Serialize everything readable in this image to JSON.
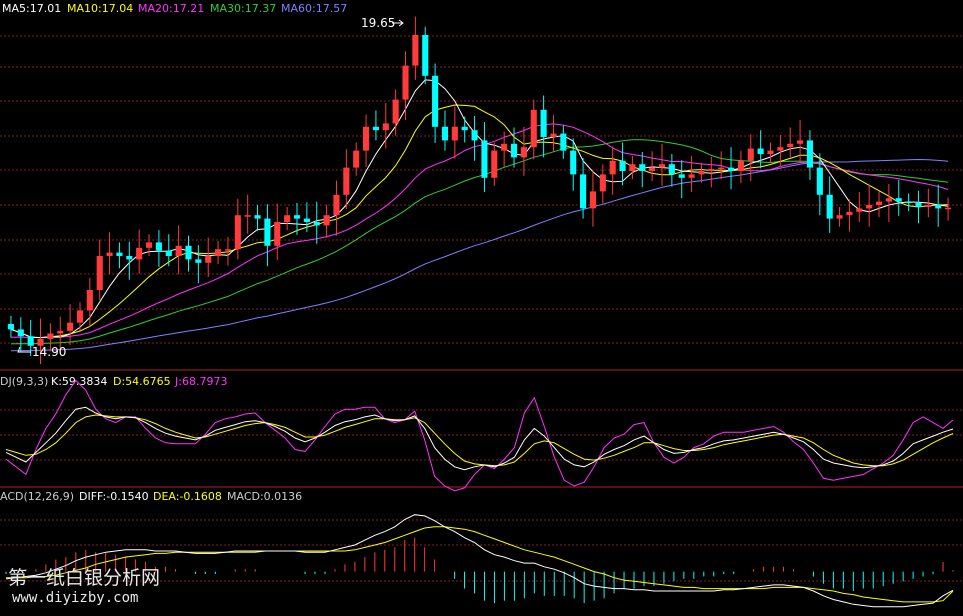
{
  "main": {
    "ma_labels": [
      {
        "text": "MA5:17.01",
        "color": "#ffffff"
      },
      {
        "text": "MA10:17.04",
        "color": "#ffff00"
      },
      {
        "text": "MA20:17.21",
        "color": "#ff33ff"
      },
      {
        "text": "MA30:17.37",
        "color": "#33cc33"
      },
      {
        "text": "MA60:17.57",
        "color": "#8080ff"
      }
    ],
    "high_label": "19.65",
    "low_label": "14.90"
  },
  "kdj": {
    "header": "DJ(9,3,3)",
    "k": "K:59.3834",
    "d": "D:54.6765",
    "j": "J:68.7973"
  },
  "macd": {
    "header": "ACD(12,26,9)",
    "diff": "DIFF:-0.1540",
    "dea": "DEA:-0.1608",
    "macd": "MACD:0.0136"
  },
  "watermark": {
    "line1": "第一纸白银分析网",
    "line2": "www.diyizby.com"
  },
  "colors": {
    "up": "#ff3b3b",
    "down": "#00ffff",
    "grid": "#8a1c1c",
    "border": "#b02020",
    "ma5": "#ffffff",
    "ma10": "#ffff00",
    "ma20": "#ff33ff",
    "ma30": "#33cc33",
    "ma60": "#8080ff"
  },
  "chart_data": [
    {
      "type": "candlestick",
      "title": "",
      "ylim": [
        14.8,
        19.8
      ],
      "highest": 19.65,
      "lowest": 14.9,
      "closes": [
        15.22,
        15.12,
        14.98,
        15.08,
        15.16,
        15.2,
        15.32,
        15.5,
        15.8,
        16.3,
        16.35,
        16.3,
        16.25,
        16.42,
        16.5,
        16.38,
        16.3,
        16.45,
        16.25,
        16.2,
        16.3,
        16.4,
        16.4,
        16.9,
        16.9,
        16.85,
        16.45,
        16.8,
        16.9,
        16.85,
        16.8,
        16.75,
        16.9,
        17.2,
        17.6,
        17.85,
        18.2,
        18.15,
        18.25,
        18.6,
        19.1,
        19.55,
        18.95,
        18.2,
        18.0,
        18.2,
        18.15,
        18.0,
        17.45,
        17.85,
        17.95,
        17.75,
        17.9,
        18.45,
        18.05,
        18.1,
        17.85,
        17.5,
        17.0,
        17.25,
        17.5,
        17.7,
        17.55,
        17.65,
        17.55,
        17.6,
        17.65,
        17.5,
        17.45,
        17.5,
        17.55,
        17.58,
        17.6,
        17.55,
        17.7,
        17.88,
        17.8,
        17.85,
        17.9,
        17.95,
        18.0,
        17.6,
        17.2,
        16.85,
        16.9,
        16.95,
        17.0,
        17.05,
        17.1,
        17.15,
        17.1,
        17.08,
        17.02,
        17.05,
        17.0,
        17.01
      ],
      "opens": [
        15.3,
        15.22,
        15.12,
        14.98,
        15.08,
        15.16,
        15.2,
        15.32,
        15.5,
        15.8,
        16.3,
        16.35,
        16.3,
        16.25,
        16.42,
        16.5,
        16.38,
        16.3,
        16.45,
        16.25,
        16.2,
        16.3,
        16.4,
        16.4,
        16.9,
        16.9,
        16.85,
        16.45,
        16.8,
        16.9,
        16.85,
        16.8,
        16.75,
        16.9,
        17.2,
        17.6,
        17.85,
        18.2,
        18.15,
        18.25,
        18.6,
        19.1,
        19.55,
        18.95,
        18.2,
        18.0,
        18.2,
        18.15,
        18.0,
        17.45,
        17.85,
        17.95,
        17.75,
        17.9,
        18.45,
        18.05,
        18.1,
        17.85,
        17.5,
        17.0,
        17.25,
        17.5,
        17.7,
        17.55,
        17.65,
        17.55,
        17.6,
        17.65,
        17.5,
        17.45,
        17.5,
        17.55,
        17.58,
        17.6,
        17.55,
        17.7,
        17.88,
        17.8,
        17.85,
        17.9,
        17.95,
        18.0,
        17.6,
        17.2,
        16.85,
        16.9,
        16.95,
        17.0,
        17.05,
        17.1,
        17.15,
        17.1,
        17.08,
        17.02,
        17.05,
        17.0
      ]
    },
    {
      "type": "line",
      "title": "",
      "ylim": [
        0,
        100
      ],
      "series": [
        {
          "name": "K",
          "values": [
            35,
            30,
            25,
            35,
            45,
            55,
            68,
            80,
            82,
            76,
            72,
            70,
            72,
            71,
            66,
            60,
            55,
            52,
            50,
            48,
            52,
            58,
            61,
            64,
            67,
            68,
            66,
            62,
            57,
            50,
            46,
            50,
            56,
            63,
            67,
            69,
            72,
            74,
            70,
            68,
            69,
            73,
            60,
            40,
            28,
            20,
            17,
            20,
            22,
            20,
            24,
            30,
            48,
            60,
            52,
            40,
            28,
            22,
            20,
            25,
            33,
            38,
            42,
            48,
            52,
            45,
            38,
            34,
            35,
            38,
            40,
            44,
            47,
            48,
            50,
            52,
            54,
            56,
            54,
            50,
            46,
            38,
            28,
            24,
            22,
            20,
            19,
            20,
            22,
            26,
            34,
            44,
            48,
            52,
            56,
            59.38
          ]
        },
        {
          "name": "D",
          "values": [
            38,
            35,
            32,
            33,
            38,
            45,
            55,
            66,
            72,
            74,
            73,
            72,
            72,
            71,
            69,
            65,
            60,
            56,
            53,
            50,
            51,
            54,
            57,
            60,
            63,
            65,
            66,
            64,
            61,
            56,
            51,
            51,
            53,
            57,
            61,
            64,
            67,
            70,
            70,
            69,
            69,
            71,
            66,
            55,
            44,
            34,
            26,
            23,
            22,
            21,
            22,
            25,
            34,
            44,
            47,
            45,
            39,
            33,
            28,
            27,
            29,
            32,
            36,
            40,
            45,
            45,
            42,
            39,
            37,
            37,
            38,
            40,
            43,
            45,
            47,
            49,
            51,
            53,
            54,
            52,
            50,
            45,
            38,
            32,
            28,
            24,
            22,
            21,
            21,
            23,
            27,
            33,
            39,
            45,
            50,
            54.68
          ]
        },
        {
          "name": "J",
          "values": [
            28,
            20,
            12,
            38,
            60,
            75,
            95,
            110,
            100,
            80,
            70,
            66,
            72,
            72,
            60,
            50,
            45,
            44,
            44,
            44,
            54,
            66,
            70,
            72,
            75,
            76,
            66,
            58,
            50,
            38,
            36,
            48,
            62,
            75,
            80,
            80,
            82,
            82,
            70,
            66,
            69,
            78,
            48,
            10,
            0,
            -5,
            -2,
            12,
            22,
            18,
            28,
            40,
            76,
            92,
            62,
            30,
            6,
            0,
            4,
            20,
            40,
            50,
            54,
            64,
            66,
            45,
            30,
            24,
            30,
            40,
            44,
            52,
            56,
            56,
            56,
            58,
            60,
            62,
            56,
            46,
            38,
            24,
            8,
            6,
            8,
            10,
            12,
            18,
            24,
            32,
            48,
            66,
            72,
            66,
            60,
            68.8
          ]
        }
      ]
    },
    {
      "type": "bar",
      "title": "",
      "ylim": [
        -0.35,
        0.55
      ],
      "series": [
        {
          "name": "DIFF",
          "values": [
            -0.06,
            -0.05,
            -0.04,
            -0.03,
            -0.01,
            0.02,
            0.05,
            0.09,
            0.12,
            0.14,
            0.16,
            0.17,
            0.18,
            0.18,
            0.18,
            0.17,
            0.17,
            0.17,
            0.16,
            0.15,
            0.15,
            0.15,
            0.16,
            0.17,
            0.17,
            0.17,
            0.17,
            0.17,
            0.17,
            0.17,
            0.16,
            0.16,
            0.16,
            0.18,
            0.2,
            0.22,
            0.26,
            0.3,
            0.33,
            0.37,
            0.43,
            0.47,
            0.46,
            0.42,
            0.37,
            0.33,
            0.28,
            0.24,
            0.18,
            0.14,
            0.12,
            0.09,
            0.07,
            0.07,
            0.04,
            0.02,
            -0.01,
            -0.05,
            -0.1,
            -0.12,
            -0.13,
            -0.14,
            -0.14,
            -0.15,
            -0.15,
            -0.16,
            -0.16,
            -0.16,
            -0.16,
            -0.16,
            -0.16,
            -0.16,
            -0.15,
            -0.15,
            -0.14,
            -0.13,
            -0.12,
            -0.11,
            -0.11,
            -0.12,
            -0.13,
            -0.16,
            -0.2,
            -0.23,
            -0.25,
            -0.27,
            -0.28,
            -0.29,
            -0.29,
            -0.29,
            -0.29,
            -0.28,
            -0.27,
            -0.26,
            -0.2,
            -0.154
          ]
        },
        {
          "name": "DEA",
          "values": [
            -0.05,
            -0.05,
            -0.05,
            -0.04,
            -0.04,
            -0.03,
            -0.01,
            0.01,
            0.03,
            0.06,
            0.08,
            0.1,
            0.12,
            0.13,
            0.14,
            0.15,
            0.15,
            0.16,
            0.16,
            0.16,
            0.16,
            0.16,
            0.16,
            0.16,
            0.16,
            0.16,
            0.17,
            0.17,
            0.17,
            0.17,
            0.17,
            0.17,
            0.17,
            0.17,
            0.17,
            0.18,
            0.2,
            0.22,
            0.24,
            0.27,
            0.3,
            0.33,
            0.36,
            0.37,
            0.37,
            0.36,
            0.35,
            0.33,
            0.3,
            0.27,
            0.24,
            0.21,
            0.18,
            0.16,
            0.14,
            0.12,
            0.09,
            0.06,
            0.03,
            0.0,
            -0.02,
            -0.05,
            -0.07,
            -0.08,
            -0.09,
            -0.1,
            -0.11,
            -0.12,
            -0.13,
            -0.13,
            -0.14,
            -0.14,
            -0.14,
            -0.14,
            -0.14,
            -0.14,
            -0.14,
            -0.13,
            -0.13,
            -0.13,
            -0.13,
            -0.14,
            -0.15,
            -0.16,
            -0.18,
            -0.19,
            -0.21,
            -0.22,
            -0.23,
            -0.24,
            -0.25,
            -0.25,
            -0.25,
            -0.25,
            -0.24,
            -0.1608
          ]
        }
      ]
    }
  ]
}
